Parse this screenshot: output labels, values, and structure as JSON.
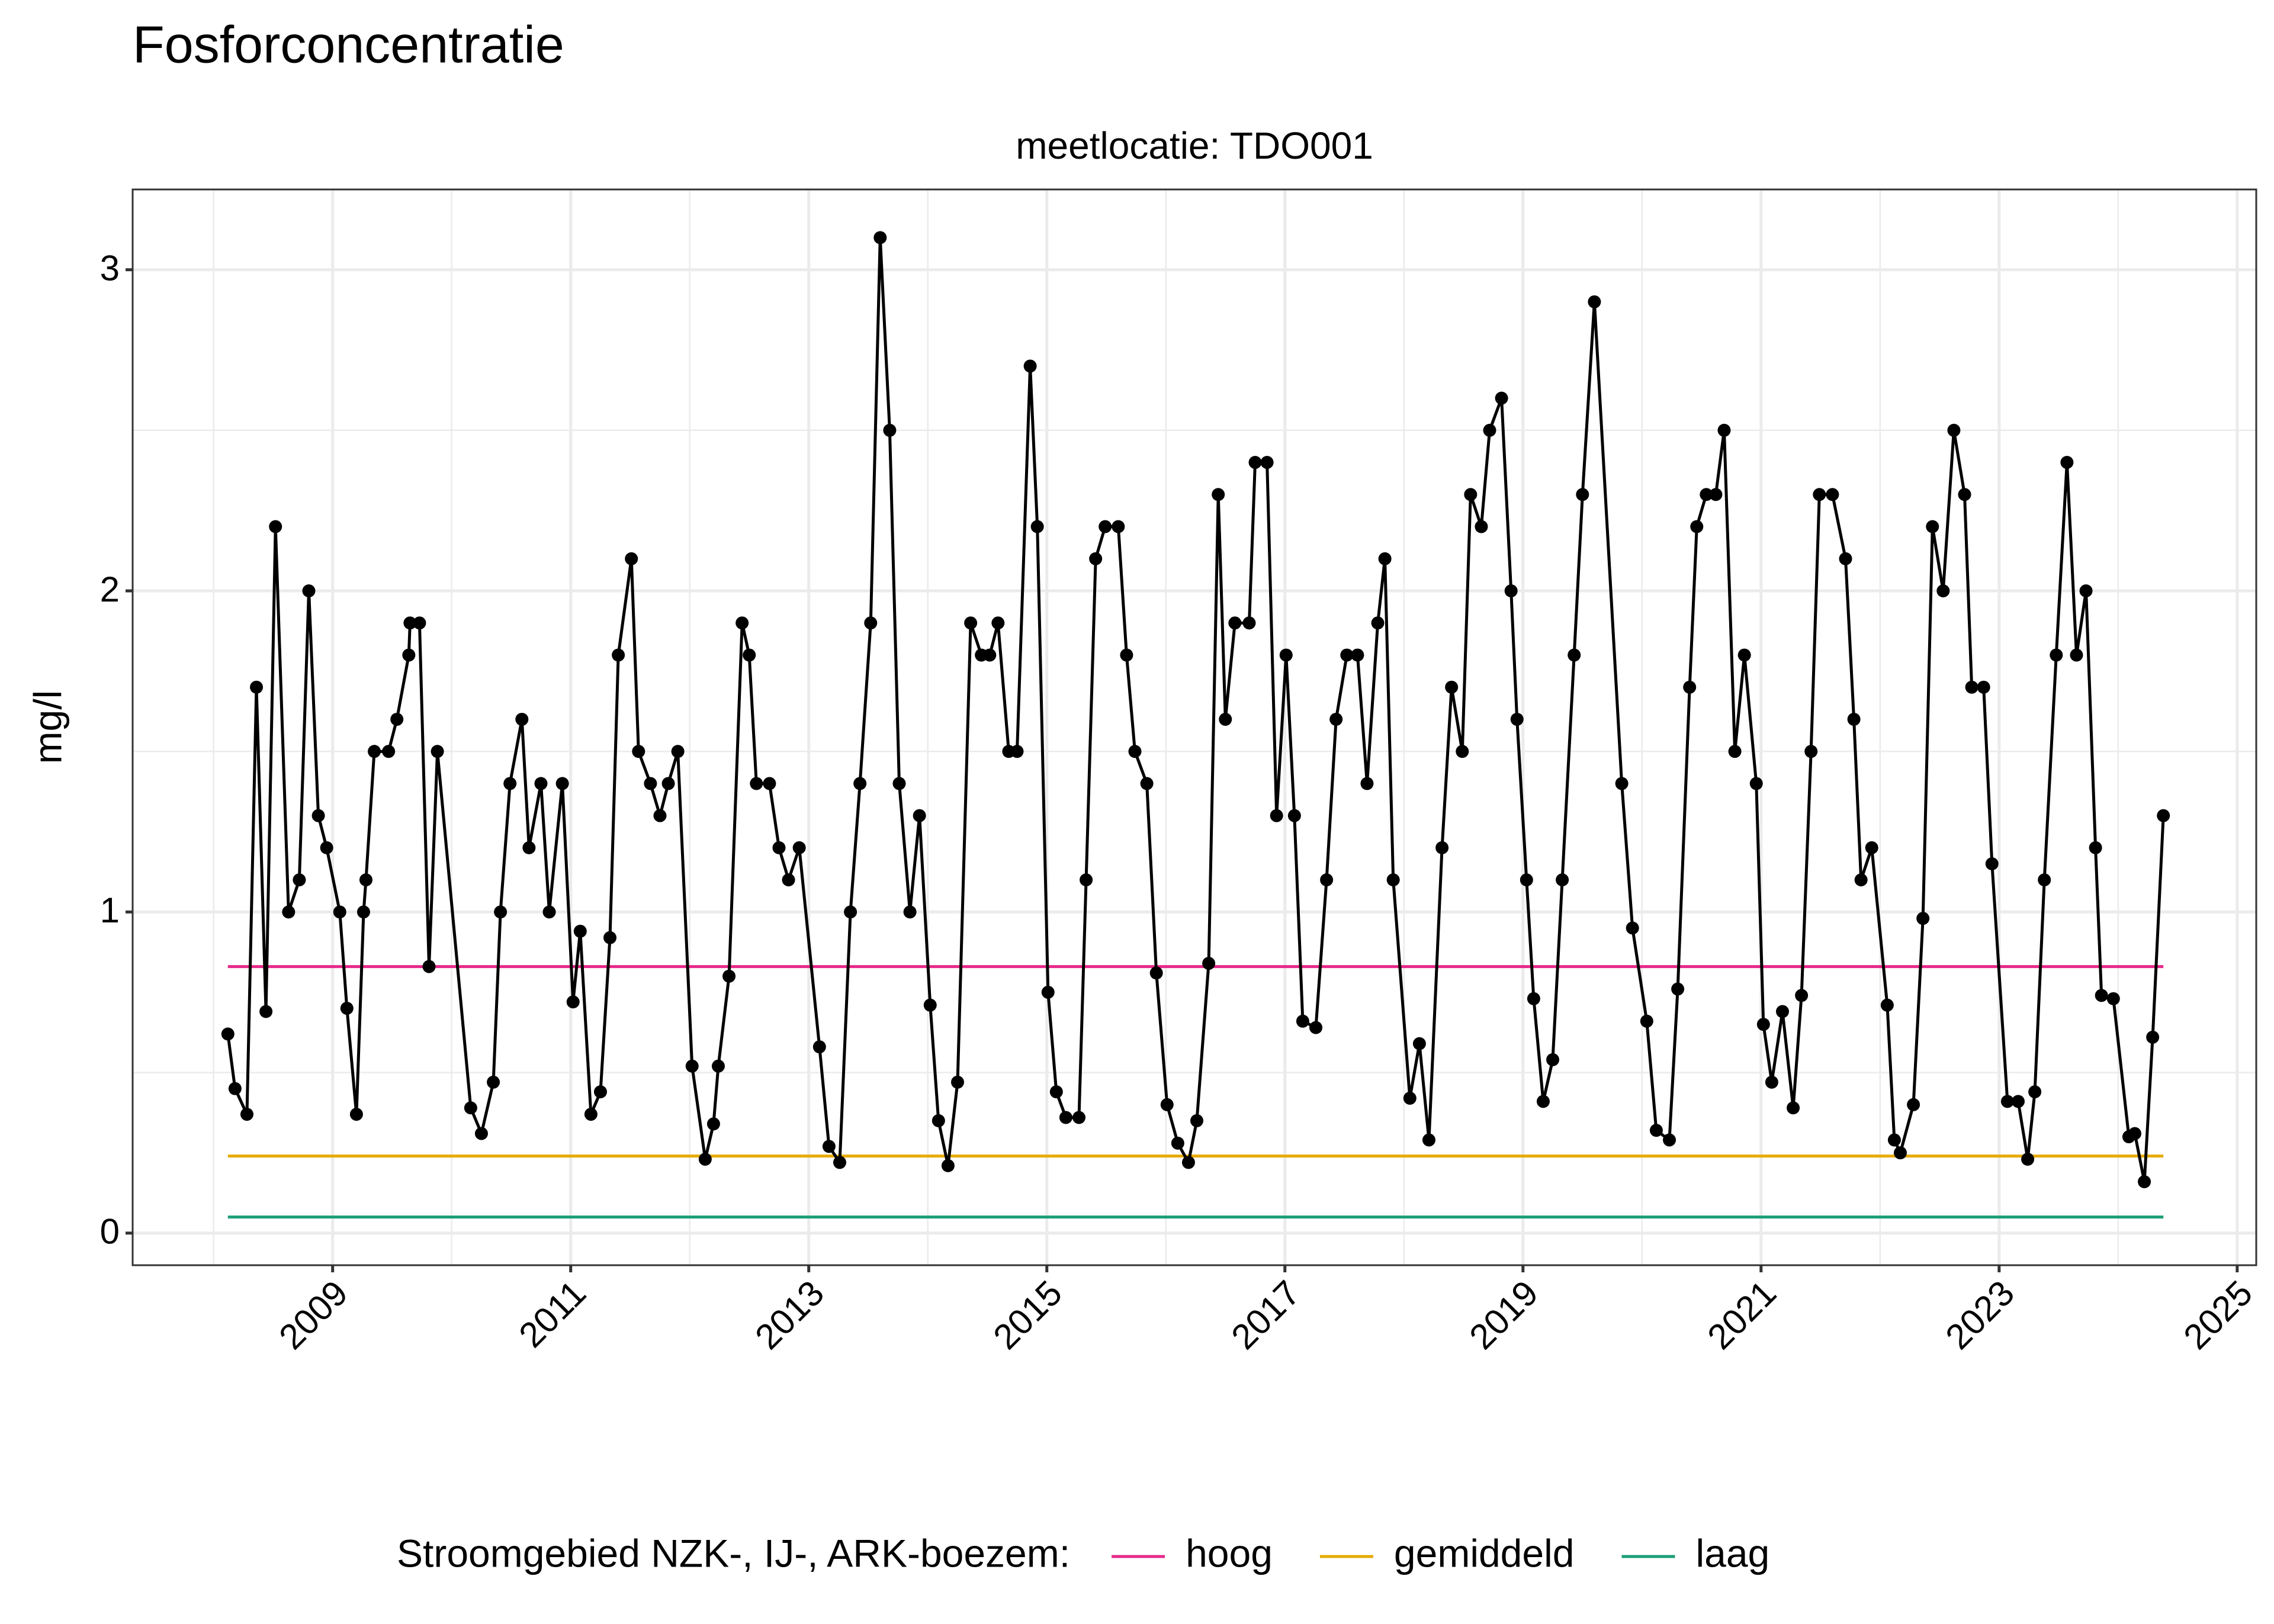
{
  "chart_data": {
    "type": "line",
    "title": "Fosforconcentratie",
    "subtitle": "meetlocatie: TDO001",
    "y_label": "mg/l",
    "color": "#000000",
    "x": [
      2008.12,
      2008.18,
      2008.28,
      2008.36,
      2008.44,
      2008.52,
      2008.63,
      2008.72,
      2008.8,
      2008.88,
      2008.95,
      2009.06,
      2009.12,
      2009.2,
      2009.26,
      2009.28,
      2009.35,
      2009.47,
      2009.54,
      2009.64,
      2009.65,
      2009.73,
      2009.81,
      2009.88,
      2010.16,
      2010.25,
      2010.35,
      2010.41,
      2010.49,
      2010.59,
      2010.65,
      2010.75,
      2010.82,
      2010.93,
      2011.02,
      2011.08,
      2011.17,
      2011.25,
      2011.33,
      2011.4,
      2011.51,
      2011.57,
      2011.67,
      2011.75,
      2011.82,
      2011.9,
      2012.02,
      2012.13,
      2012.2,
      2012.24,
      2012.33,
      2012.44,
      2012.5,
      2012.56,
      2012.67,
      2012.75,
      2012.83,
      2012.92,
      2013.09,
      2013.17,
      2013.26,
      2013.35,
      2013.43,
      2013.52,
      2013.6,
      2013.68,
      2013.76,
      2013.85,
      2013.93,
      2014.02,
      2014.09,
      2014.17,
      2014.25,
      2014.36,
      2014.45,
      2014.52,
      2014.59,
      2014.68,
      2014.75,
      2014.86,
      2014.92,
      2015.01,
      2015.08,
      2015.16,
      2015.27,
      2015.33,
      2015.41,
      2015.49,
      2015.6,
      2015.67,
      2015.74,
      2015.84,
      2015.92,
      2016.01,
      2016.1,
      2016.19,
      2016.26,
      2016.36,
      2016.44,
      2016.5,
      2016.58,
      2016.7,
      2016.75,
      2016.85,
      2016.93,
      2017.01,
      2017.08,
      2017.15,
      2017.26,
      2017.35,
      2017.43,
      2017.52,
      2017.61,
      2017.69,
      2017.78,
      2017.84,
      2017.91,
      2018.05,
      2018.13,
      2018.21,
      2018.32,
      2018.4,
      2018.49,
      2018.56,
      2018.65,
      2018.72,
      2018.82,
      2018.9,
      2018.95,
      2019.03,
      2019.09,
      2019.17,
      2019.25,
      2019.33,
      2019.43,
      2019.5,
      2019.6,
      2019.83,
      2019.92,
      2020.04,
      2020.12,
      2020.23,
      2020.3,
      2020.4,
      2020.46,
      2020.54,
      2020.62,
      2020.69,
      2020.78,
      2020.86,
      2020.96,
      2021.02,
      2021.09,
      2021.18,
      2021.27,
      2021.34,
      2021.42,
      2021.49,
      2021.6,
      2021.71,
      2021.78,
      2021.84,
      2021.93,
      2022.06,
      2022.12,
      2022.17,
      2022.28,
      2022.36,
      2022.44,
      2022.53,
      2022.62,
      2022.71,
      2022.77,
      2022.87,
      2022.94,
      2023.07,
      2023.16,
      2023.24,
      2023.3,
      2023.38,
      2023.48,
      2023.57,
      2023.65,
      2023.73,
      2023.81,
      2023.86,
      2023.96,
      2024.09,
      2024.14,
      2024.22,
      2024.29,
      2024.38
    ],
    "values": [
      0.62,
      0.45,
      0.37,
      1.7,
      0.69,
      2.2,
      1.0,
      1.1,
      2.0,
      1.3,
      1.2,
      1.0,
      0.7,
      0.37,
      1.0,
      1.1,
      1.5,
      1.5,
      1.6,
      1.8,
      1.9,
      1.9,
      0.83,
      1.5,
      0.39,
      0.31,
      0.47,
      1.0,
      1.4,
      1.6,
      1.2,
      1.4,
      1.0,
      1.4,
      0.72,
      0.94,
      0.37,
      0.44,
      0.92,
      1.8,
      2.1,
      1.5,
      1.4,
      1.3,
      1.4,
      1.5,
      0.52,
      0.23,
      0.34,
      0.52,
      0.8,
      1.9,
      1.8,
      1.4,
      1.4,
      1.2,
      1.1,
      1.2,
      0.58,
      0.27,
      0.22,
      1.0,
      1.4,
      1.9,
      3.1,
      2.5,
      1.4,
      1.0,
      1.3,
      0.71,
      0.35,
      0.21,
      0.47,
      1.9,
      1.8,
      1.8,
      1.9,
      1.5,
      1.5,
      2.7,
      2.2,
      0.75,
      0.44,
      0.36,
      0.36,
      1.1,
      2.1,
      2.2,
      2.2,
      1.8,
      1.5,
      1.4,
      0.81,
      0.4,
      0.28,
      0.22,
      0.35,
      0.84,
      2.3,
      1.6,
      1.9,
      1.9,
      2.4,
      2.4,
      1.3,
      1.8,
      1.3,
      0.66,
      0.64,
      1.1,
      1.6,
      1.8,
      1.8,
      1.4,
      1.9,
      2.1,
      1.1,
      0.42,
      0.59,
      0.29,
      1.2,
      1.7,
      1.5,
      2.3,
      2.2,
      2.5,
      2.6,
      2.0,
      1.6,
      1.1,
      0.73,
      0.41,
      0.54,
      1.1,
      1.8,
      2.3,
      2.9,
      1.4,
      0.95,
      0.66,
      0.32,
      0.29,
      0.76,
      1.7,
      2.2,
      2.3,
      2.3,
      2.5,
      1.5,
      1.8,
      1.4,
      0.65,
      0.47,
      0.69,
      0.39,
      0.74,
      1.5,
      2.3,
      2.3,
      2.1,
      1.6,
      1.1,
      1.2,
      0.71,
      0.29,
      0.25,
      0.4,
      0.98,
      2.2,
      2.0,
      2.5,
      2.3,
      1.7,
      1.7,
      1.15,
      0.41,
      0.41,
      0.23,
      0.44,
      1.1,
      1.8,
      2.4,
      1.8,
      2.0,
      1.2,
      0.74,
      0.73,
      0.3,
      0.31,
      0.16,
      0.61,
      1.3
    ],
    "reference_lines": [
      {
        "name": "hoog",
        "color": "#e7298a",
        "value": 0.83
      },
      {
        "name": "gemiddeld",
        "color": "#e6ab02",
        "value": 0.24
      },
      {
        "name": "laag",
        "color": "#1b9e77",
        "value": 0.05
      }
    ],
    "legend_title": "Stroomgebied NZK-, IJ-, ARK-boezem:",
    "legend": "bottom",
    "xlim": [
      2007.32,
      2025.16
    ],
    "xticks": [
      2009,
      2011,
      2013,
      2015,
      2017,
      2019,
      2021,
      2023,
      2025
    ],
    "ylim": [
      -0.1,
      3.25
    ],
    "yticks": [
      0,
      1,
      2,
      3
    ],
    "grid": true
  }
}
